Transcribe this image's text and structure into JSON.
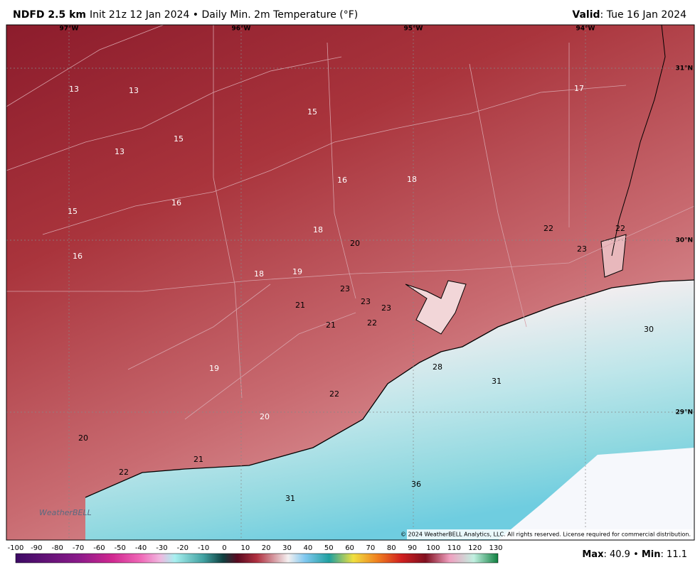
{
  "header": {
    "model": "NDFD 2.5 km",
    "description": "Init 21z 12 Jan 2024 • Daily Min. 2m Temperature (°F)",
    "valid": "Valid: Tue 16 Jan 2024"
  },
  "map": {
    "longitudes": [
      "97°W",
      "96°W",
      "95°W",
      "94°W"
    ],
    "latitudes": [
      "31°N",
      "30°N",
      "29°N"
    ],
    "labels": [
      13,
      13,
      15,
      13,
      15,
      17,
      16,
      18,
      16,
      15,
      18,
      20,
      22,
      22,
      23,
      16,
      18,
      19,
      23,
      23,
      23,
      21,
      21,
      22,
      30,
      28,
      31,
      19,
      22,
      20,
      20,
      21,
      22,
      36,
      31
    ],
    "logo": "WeatherBELL",
    "copyright": "© 2024 WeatherBELL Analytics, LLC. All rights reserved. License required for commercial distribution."
  },
  "colorbar": {
    "ticks": [
      -100,
      -90,
      -80,
      -70,
      -60,
      -50,
      -40,
      -30,
      -20,
      -10,
      0,
      10,
      20,
      30,
      40,
      50,
      60,
      70,
      80,
      90,
      100,
      110,
      120,
      130
    ]
  },
  "footer": {
    "stats": "Max: 40.9 • Min: 11.1"
  }
}
